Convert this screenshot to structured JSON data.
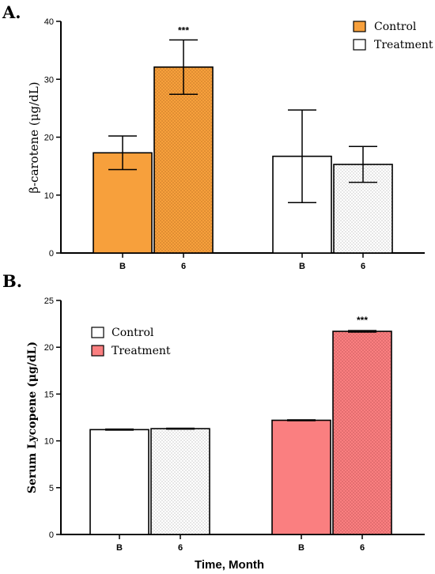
{
  "chart_data": [
    {
      "panel_label": "A.",
      "type": "bar",
      "ylabel": "β-carotene (μg/dL)",
      "xlabel": "",
      "ylim": [
        0,
        40
      ],
      "yticks": [
        "0",
        "10",
        "20",
        "30",
        "40"
      ],
      "groups": [
        {
          "name": "Control",
          "color": "#f7a03c",
          "bars": [
            {
              "category": "B",
              "value": 17.3,
              "error": 2.9,
              "pattern": "solid",
              "sig": ""
            },
            {
              "category": "6",
              "value": 32.1,
              "error": 4.7,
              "pattern": "dotted",
              "sig": "***"
            }
          ]
        },
        {
          "name": "Treatment",
          "color": "#ffffff",
          "bars": [
            {
              "category": "B",
              "value": 16.7,
              "error": 8.0,
              "pattern": "solid",
              "sig": ""
            },
            {
              "category": "6",
              "value": 15.3,
              "error": 3.1,
              "pattern": "dotted",
              "sig": ""
            }
          ]
        }
      ],
      "legend": [
        {
          "label": "Control",
          "color": "#f7a03c"
        },
        {
          "label": "Treatment",
          "color": "#ffffff"
        }
      ],
      "legend_position": "top-right"
    },
    {
      "panel_label": "B.",
      "type": "bar",
      "ylabel": "Serum Lycopene (μg/dL)",
      "xlabel": "Time, Month",
      "ylim": [
        0,
        25
      ],
      "yticks": [
        "0",
        "5",
        "10",
        "15",
        "20",
        "25"
      ],
      "groups": [
        {
          "name": "Control",
          "color": "#ffffff",
          "bars": [
            {
              "category": "B",
              "value": 11.2,
              "error": 0.05,
              "pattern": "solid",
              "sig": ""
            },
            {
              "category": "6",
              "value": 11.3,
              "error": 0.05,
              "pattern": "dotted",
              "sig": ""
            }
          ]
        },
        {
          "name": "Treatment",
          "color": "#fa7f80",
          "bars": [
            {
              "category": "B",
              "value": 12.2,
              "error": 0.05,
              "pattern": "solid",
              "sig": ""
            },
            {
              "category": "6",
              "value": 21.7,
              "error": 0.08,
              "pattern": "dotted",
              "sig": "***"
            }
          ]
        }
      ],
      "legend": [
        {
          "label": "Control",
          "color": "#ffffff"
        },
        {
          "label": "Treatment",
          "color": "#fa7f80"
        }
      ],
      "legend_position": "top-left"
    }
  ]
}
